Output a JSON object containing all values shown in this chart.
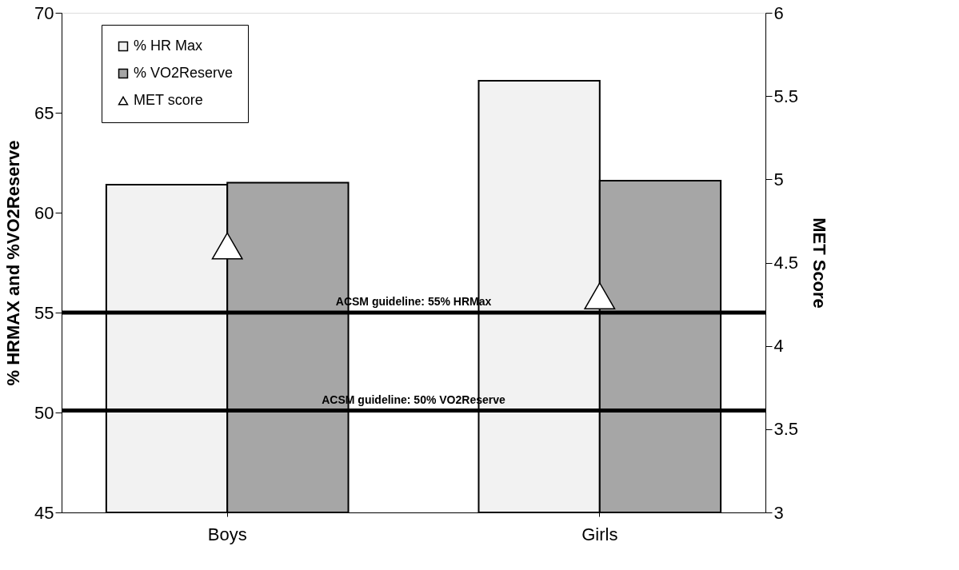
{
  "chart_data": {
    "type": "bar",
    "categories": [
      "Boys",
      "Girls"
    ],
    "ylabel": "% HRMAX and %VO2Reserve",
    "y2label": "MET Score",
    "ylim": [
      45,
      70
    ],
    "yticks": [
      45,
      50,
      55,
      60,
      65,
      70
    ],
    "y2lim": [
      3,
      6
    ],
    "y2ticks": [
      3,
      3.5,
      4,
      4.5,
      5,
      5.5,
      6
    ],
    "series": [
      {
        "name": "% HR Max",
        "color": "#f2f2f2",
        "values": [
          61.4,
          66.6
        ]
      },
      {
        "name": "% VO2Reserve",
        "color": "#a6a6a6",
        "values": [
          61.5,
          61.6
        ]
      },
      {
        "name": "MET score",
        "type": "scatter",
        "axis": "y2",
        "marker": "triangle",
        "color": "#ffffff",
        "values": [
          4.6,
          4.3
        ]
      }
    ],
    "ref_lines": [
      {
        "axis": "y",
        "value": 55,
        "label": "ACSM guideline: 55% HRMax",
        "color": "#000000"
      },
      {
        "axis": "y",
        "value": 50.1,
        "label": "ACSM guideline: 50% VO2Reserve",
        "color": "#000000"
      }
    ],
    "grid": false,
    "legend": "top left"
  }
}
